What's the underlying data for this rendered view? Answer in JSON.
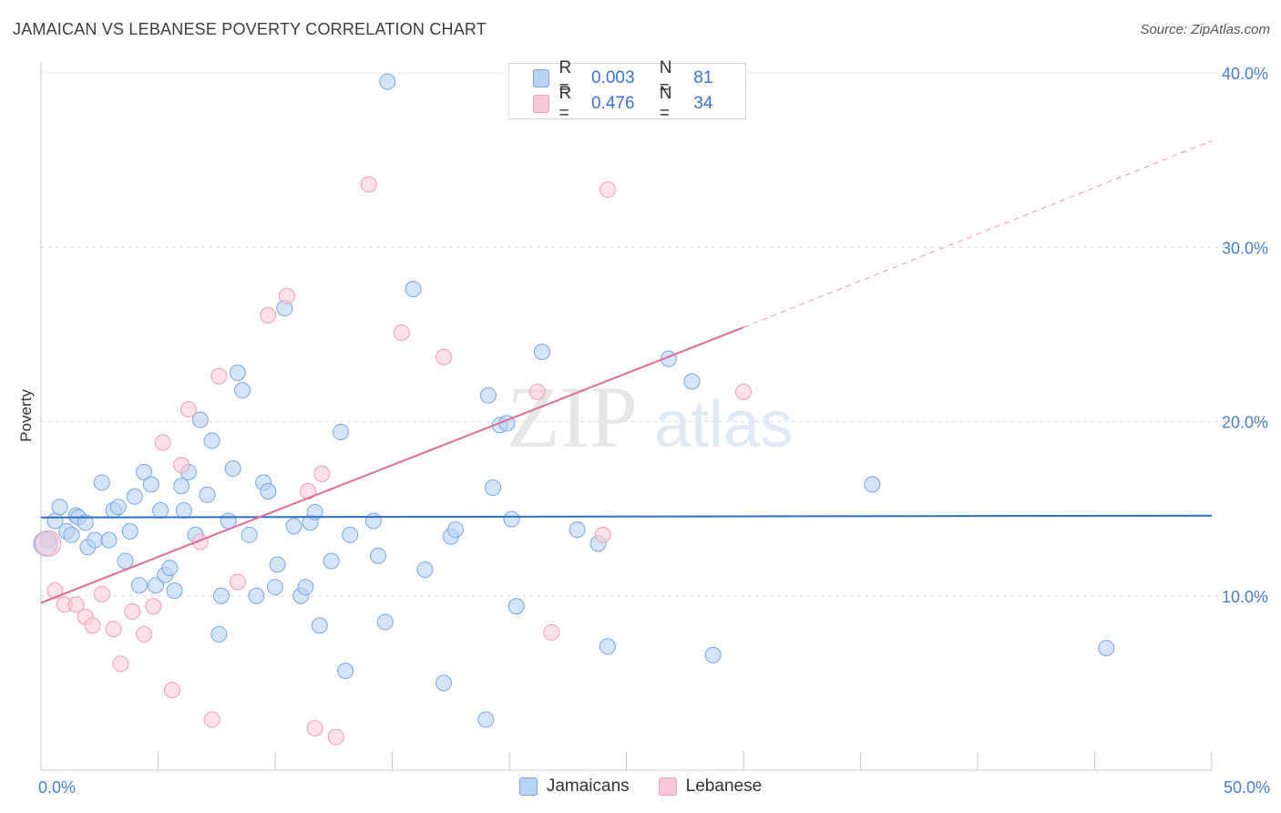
{
  "title": "JAMAICAN VS LEBANESE POVERTY CORRELATION CHART",
  "source": "Source: ZipAtlas.com",
  "watermark": {
    "zip": "ZIP",
    "atlas": "atlas"
  },
  "legend_top": {
    "rows": [
      {
        "r_label": "R =",
        "r_value": "0.003",
        "n_label": "N =",
        "n_value": "81"
      },
      {
        "r_label": "R =",
        "r_value": "0.476",
        "n_label": "N =",
        "n_value": "34"
      }
    ]
  },
  "legend_bottom": {
    "jamaicans": "Jamaicans",
    "lebanese": "Lebanese"
  },
  "colors": {
    "jam_fill": "#b8d3f5",
    "jam_stroke": "#7aa6e0",
    "jam_line": "#2b6fcb",
    "leb_fill": "#f9c8d6",
    "leb_stroke": "#eea0b6",
    "leb_line": "#e06a95",
    "grid": "#dcdcdc",
    "tick_text": "#4a7fd0"
  },
  "chart_data": {
    "type": "scatter",
    "title": "JAMAICAN VS LEBANESE POVERTY CORRELATION CHART",
    "xlabel": "",
    "ylabel": "Poverty",
    "xlim": [
      0,
      50
    ],
    "ylim": [
      0,
      40
    ],
    "x_ticks_labeled": [
      {
        "value": 0,
        "label": "0.0%"
      },
      {
        "value": 50,
        "label": "50.0%"
      }
    ],
    "y_ticks": [
      {
        "value": 10,
        "label": "10.0%"
      },
      {
        "value": 20,
        "label": "20.0%"
      },
      {
        "value": 30,
        "label": "30.0%"
      },
      {
        "value": 40,
        "label": "40.0%"
      }
    ],
    "grid": true,
    "series": [
      {
        "name": "Jamaicans",
        "r": 0.003,
        "n": 81,
        "trend": {
          "x0": 0,
          "y0": 14.5,
          "x1": 50,
          "y1": 14.6
        },
        "points": [
          [
            0.3,
            13.2
          ],
          [
            0.6,
            14.3
          ],
          [
            0.8,
            15.1
          ],
          [
            1.1,
            13.7
          ],
          [
            1.3,
            13.5
          ],
          [
            1.5,
            14.6
          ],
          [
            1.6,
            14.5
          ],
          [
            1.9,
            14.2
          ],
          [
            2.0,
            12.8
          ],
          [
            2.3,
            13.2
          ],
          [
            2.6,
            16.5
          ],
          [
            2.9,
            13.2
          ],
          [
            3.1,
            14.9
          ],
          [
            3.3,
            15.1
          ],
          [
            3.6,
            12.0
          ],
          [
            3.8,
            13.7
          ],
          [
            4.0,
            15.7
          ],
          [
            4.2,
            10.6
          ],
          [
            4.4,
            17.1
          ],
          [
            4.7,
            16.4
          ],
          [
            4.9,
            10.6
          ],
          [
            5.1,
            14.9
          ],
          [
            5.3,
            11.2
          ],
          [
            5.5,
            11.6
          ],
          [
            5.7,
            10.3
          ],
          [
            6.0,
            16.3
          ],
          [
            6.1,
            14.9
          ],
          [
            6.3,
            17.1
          ],
          [
            6.6,
            13.5
          ],
          [
            6.8,
            20.1
          ],
          [
            7.1,
            15.8
          ],
          [
            7.3,
            18.9
          ],
          [
            7.6,
            7.8
          ],
          [
            7.7,
            10.0
          ],
          [
            8.0,
            14.3
          ],
          [
            8.2,
            17.3
          ],
          [
            8.4,
            22.8
          ],
          [
            8.6,
            21.8
          ],
          [
            8.9,
            13.5
          ],
          [
            9.2,
            10.0
          ],
          [
            9.5,
            16.5
          ],
          [
            9.7,
            16.0
          ],
          [
            10.0,
            10.5
          ],
          [
            10.1,
            11.8
          ],
          [
            10.4,
            26.5
          ],
          [
            10.8,
            14.0
          ],
          [
            11.1,
            10.0
          ],
          [
            11.3,
            10.5
          ],
          [
            11.5,
            14.2
          ],
          [
            11.7,
            14.8
          ],
          [
            11.9,
            8.3
          ],
          [
            12.4,
            12.0
          ],
          [
            12.8,
            19.4
          ],
          [
            13.0,
            5.7
          ],
          [
            13.2,
            13.5
          ],
          [
            14.2,
            14.3
          ],
          [
            14.4,
            12.3
          ],
          [
            14.7,
            8.5
          ],
          [
            14.8,
            39.5
          ],
          [
            15.9,
            27.6
          ],
          [
            16.4,
            11.5
          ],
          [
            17.2,
            5.0
          ],
          [
            17.5,
            13.4
          ],
          [
            17.7,
            13.8
          ],
          [
            19.0,
            2.9
          ],
          [
            19.1,
            21.5
          ],
          [
            19.3,
            16.2
          ],
          [
            19.6,
            19.8
          ],
          [
            19.9,
            19.9
          ],
          [
            20.1,
            14.4
          ],
          [
            20.3,
            9.4
          ],
          [
            21.4,
            24.0
          ],
          [
            22.9,
            13.8
          ],
          [
            23.8,
            13.0
          ],
          [
            24.2,
            7.1
          ],
          [
            26.8,
            23.6
          ],
          [
            27.8,
            22.3
          ],
          [
            28.7,
            6.6
          ],
          [
            35.5,
            16.4
          ],
          [
            45.5,
            7.0
          ],
          [
            0.2,
            13.0
          ]
        ]
      },
      {
        "name": "Lebanese",
        "r": 0.476,
        "n": 34,
        "trend": {
          "x0": 0,
          "y0": 9.6,
          "x1": 30,
          "y1": 25.4
        },
        "trend_extension": {
          "x0": 30,
          "y0": 25.4,
          "x1": 50,
          "y1": 36.1
        },
        "points": [
          [
            0.3,
            13.0
          ],
          [
            0.6,
            10.3
          ],
          [
            1.0,
            9.5
          ],
          [
            1.5,
            9.5
          ],
          [
            1.9,
            8.8
          ],
          [
            2.2,
            8.3
          ],
          [
            2.6,
            10.1
          ],
          [
            3.1,
            8.1
          ],
          [
            3.4,
            6.1
          ],
          [
            3.9,
            9.1
          ],
          [
            4.4,
            7.8
          ],
          [
            4.8,
            9.4
          ],
          [
            5.2,
            18.8
          ],
          [
            5.6,
            4.6
          ],
          [
            6.0,
            17.5
          ],
          [
            6.3,
            20.7
          ],
          [
            6.8,
            13.1
          ],
          [
            7.3,
            2.9
          ],
          [
            7.6,
            22.6
          ],
          [
            8.4,
            10.8
          ],
          [
            9.7,
            26.1
          ],
          [
            10.5,
            27.2
          ],
          [
            11.4,
            16.0
          ],
          [
            11.7,
            2.4
          ],
          [
            12.0,
            17.0
          ],
          [
            12.6,
            1.9
          ],
          [
            14.0,
            33.6
          ],
          [
            15.4,
            25.1
          ],
          [
            17.2,
            23.7
          ],
          [
            21.2,
            21.7
          ],
          [
            21.8,
            7.9
          ],
          [
            24.0,
            13.5
          ],
          [
            24.2,
            33.3
          ],
          [
            30.0,
            21.7
          ]
        ]
      }
    ]
  }
}
